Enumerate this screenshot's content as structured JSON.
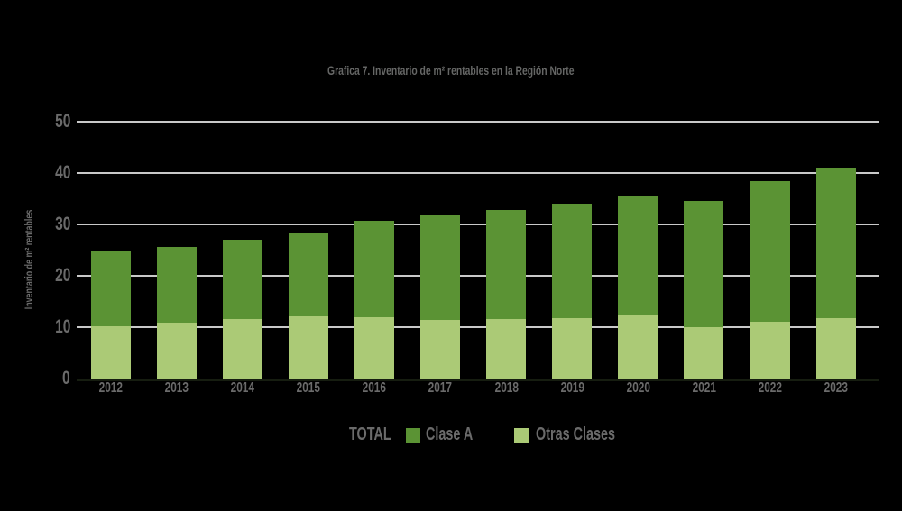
{
  "chart_data": {
    "type": "bar",
    "stacked": true,
    "title": "Grafica 7. Inventario de m² rentables en la Región Norte",
    "ylabel": "Inventario de m² rentables",
    "xlabel": "",
    "ylim": [
      0,
      50
    ],
    "yticks": [
      0,
      10,
      20,
      30,
      40,
      50
    ],
    "grid": true,
    "legend_position": "bottom",
    "categories": [
      "2012",
      "2013",
      "2014",
      "2015",
      "2016",
      "2017",
      "2018",
      "2019",
      "2020",
      "2021",
      "2022",
      "2023"
    ],
    "series": [
      {
        "name": "Clase A",
        "color": "#5b9334",
        "values": [
          14.6,
          14.7,
          15.5,
          16.2,
          18.8,
          20.4,
          21.1,
          22.3,
          22.9,
          24.6,
          27.2,
          29.3
        ]
      },
      {
        "name": "Otras Clases",
        "color": "#abca76",
        "values": [
          10.2,
          10.8,
          11.5,
          12.1,
          11.9,
          11.3,
          11.6,
          11.7,
          12.5,
          10.0,
          11.1,
          11.7
        ]
      }
    ],
    "totals": [
      24.8,
      25.5,
      27.0,
      28.3,
      30.7,
      31.7,
      32.7,
      34.0,
      35.4,
      34.6,
      38.3,
      41.0
    ],
    "legend_items": [
      {
        "label": "TOTAL",
        "swatch": null
      },
      {
        "label": "Clase A",
        "swatch": "#5b9334"
      },
      {
        "label": "Otras Clases",
        "swatch": "#abca76"
      }
    ]
  },
  "colors": {
    "background": "#000000",
    "gridline": "#c9c9c9",
    "axis_line": "#161d10",
    "text": "#6b6b6b",
    "clase_a": "#5b9334",
    "otras_clases": "#abca76"
  }
}
